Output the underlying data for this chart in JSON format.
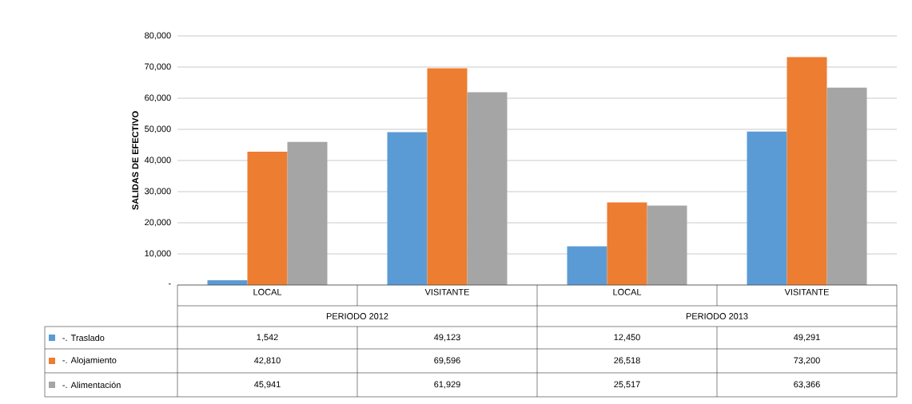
{
  "chart_data": {
    "type": "bar",
    "ylabel": "SALIDAS DE EFECTIVO",
    "categories": [
      "LOCAL",
      "VISITANTE",
      "LOCAL",
      "VISITANTE"
    ],
    "annotations": [
      "PERIODO 2012",
      "PERIODO 2013"
    ],
    "series": [
      {
        "name": "-. Traslado",
        "color": "#5b9bd5",
        "values": [
          1542,
          49123,
          12450,
          49291
        ],
        "value_labels": [
          "1,542",
          "49,123",
          "12,450",
          "49,291"
        ]
      },
      {
        "name": "-. Alojamiento",
        "color": "#ed7d31",
        "values": [
          42810,
          69596,
          26518,
          73200
        ],
        "value_labels": [
          "42,810",
          "69,596",
          "26,518",
          "73,200"
        ]
      },
      {
        "name": "-. Alimentación",
        "color": "#a5a5a5",
        "values": [
          45941,
          61929,
          25517,
          63366
        ],
        "value_labels": [
          "45,941",
          "61,929",
          "25,517",
          "63,366"
        ]
      }
    ],
    "ylim": [
      0,
      80000
    ],
    "yticks": [
      {
        "value": 0,
        "label": "-"
      },
      {
        "value": 10000,
        "label": "10,000"
      },
      {
        "value": 20000,
        "label": "20,000"
      },
      {
        "value": 30000,
        "label": "30,000"
      },
      {
        "value": 40000,
        "label": "40,000"
      },
      {
        "value": 50000,
        "label": "50,000"
      },
      {
        "value": 60000,
        "label": "60,000"
      },
      {
        "value": 70000,
        "label": "70,000"
      },
      {
        "value": 80000,
        "label": "80,000"
      }
    ],
    "grid": "y",
    "legend": "bottom"
  }
}
